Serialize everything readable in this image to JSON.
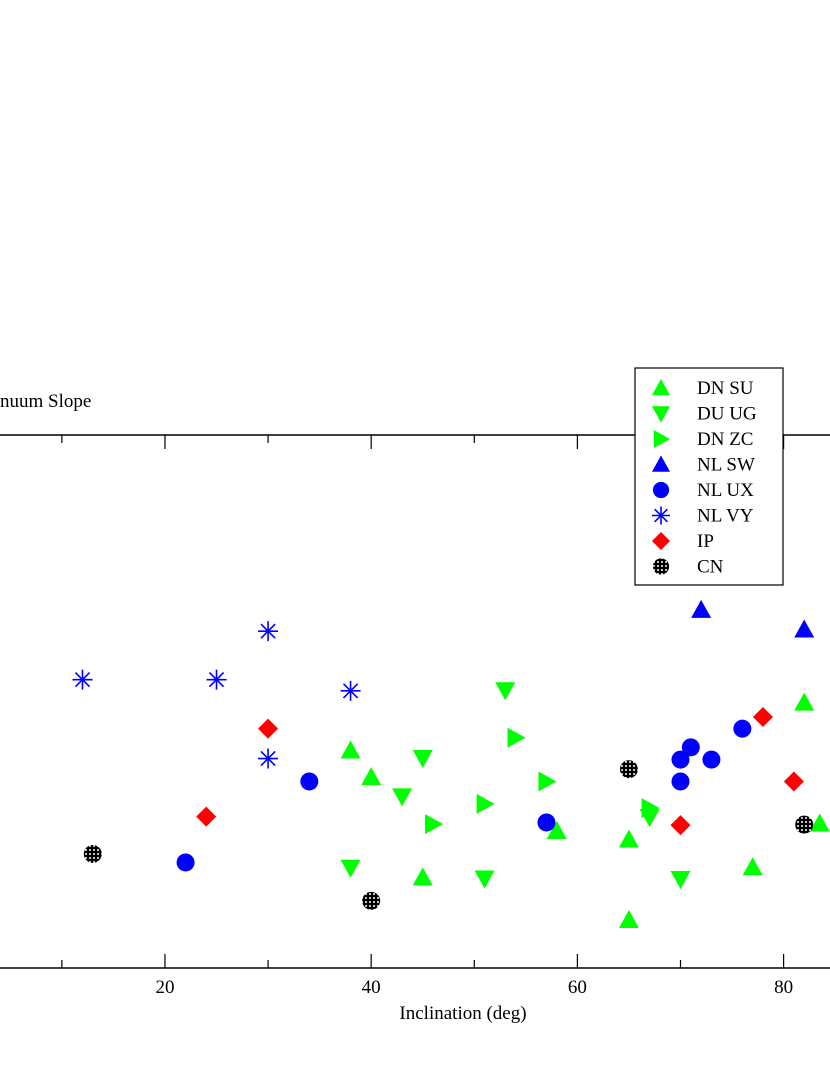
{
  "chart_data": {
    "type": "scatter",
    "title": "nuum Slope",
    "xlabel": "Inclination (deg)",
    "ylabel": "",
    "xlim": [
      4,
      84.5
    ],
    "x_ticks": [
      20,
      40,
      60,
      80
    ],
    "x_tick_labels": [
      "20",
      "40",
      "60",
      "80"
    ],
    "ylim": [
      0,
      1
    ],
    "grid": false,
    "legend_position": "top-right",
    "series": [
      {
        "name": "DN SU",
        "marker": "triangle-up",
        "color": "#00ff00",
        "points": [
          [
            38,
            0.408
          ],
          [
            40,
            0.358
          ],
          [
            58,
            0.257
          ],
          [
            45,
            0.17
          ],
          [
            65,
            0.241
          ],
          [
            65,
            0.09
          ],
          [
            77,
            0.189
          ],
          [
            82,
            0.498
          ],
          [
            83.5,
            0.271
          ]
        ]
      },
      {
        "name": "DU UG",
        "marker": "triangle-down",
        "color": "#00ff00",
        "points": [
          [
            53,
            0.521
          ],
          [
            45,
            0.394
          ],
          [
            43,
            0.322
          ],
          [
            38,
            0.188
          ],
          [
            51,
            0.168
          ],
          [
            70,
            0.167
          ],
          [
            67,
            0.283
          ]
        ]
      },
      {
        "name": "DN ZC",
        "marker": "triangle-right",
        "color": "#00ff00",
        "points": [
          [
            54,
            0.432
          ],
          [
            57,
            0.35
          ],
          [
            46,
            0.27
          ],
          [
            51,
            0.308
          ],
          [
            67,
            0.3
          ]
        ]
      },
      {
        "name": "NL SW",
        "marker": "triangle-up",
        "color": "#0000ff",
        "points": [
          [
            72,
            0.672
          ],
          [
            82,
            0.635
          ]
        ]
      },
      {
        "name": "NL UX",
        "marker": "circle",
        "color": "#0000ff",
        "points": [
          [
            22,
            0.198
          ],
          [
            34,
            0.35
          ],
          [
            57,
            0.273
          ],
          [
            70,
            0.391
          ],
          [
            71,
            0.414
          ],
          [
            73,
            0.391
          ],
          [
            76,
            0.449
          ],
          [
            70,
            0.35
          ]
        ]
      },
      {
        "name": "NL VY",
        "marker": "asterisk",
        "color": "#0000ff",
        "points": [
          [
            12,
            0.541
          ],
          [
            25,
            0.541
          ],
          [
            30,
            0.632
          ],
          [
            38,
            0.52
          ],
          [
            30,
            0.393
          ]
        ]
      },
      {
        "name": "IP",
        "marker": "diamond",
        "color": "#ff0000",
        "points": [
          [
            24,
            0.284
          ],
          [
            30,
            0.449
          ],
          [
            70,
            0.268
          ],
          [
            78,
            0.471
          ],
          [
            81,
            0.35
          ]
        ]
      },
      {
        "name": "CN",
        "marker": "dotted-circle",
        "color": "#000000",
        "points": [
          [
            13,
            0.214
          ],
          [
            40,
            0.126
          ],
          [
            65,
            0.373
          ],
          [
            82,
            0.269
          ]
        ]
      }
    ]
  }
}
